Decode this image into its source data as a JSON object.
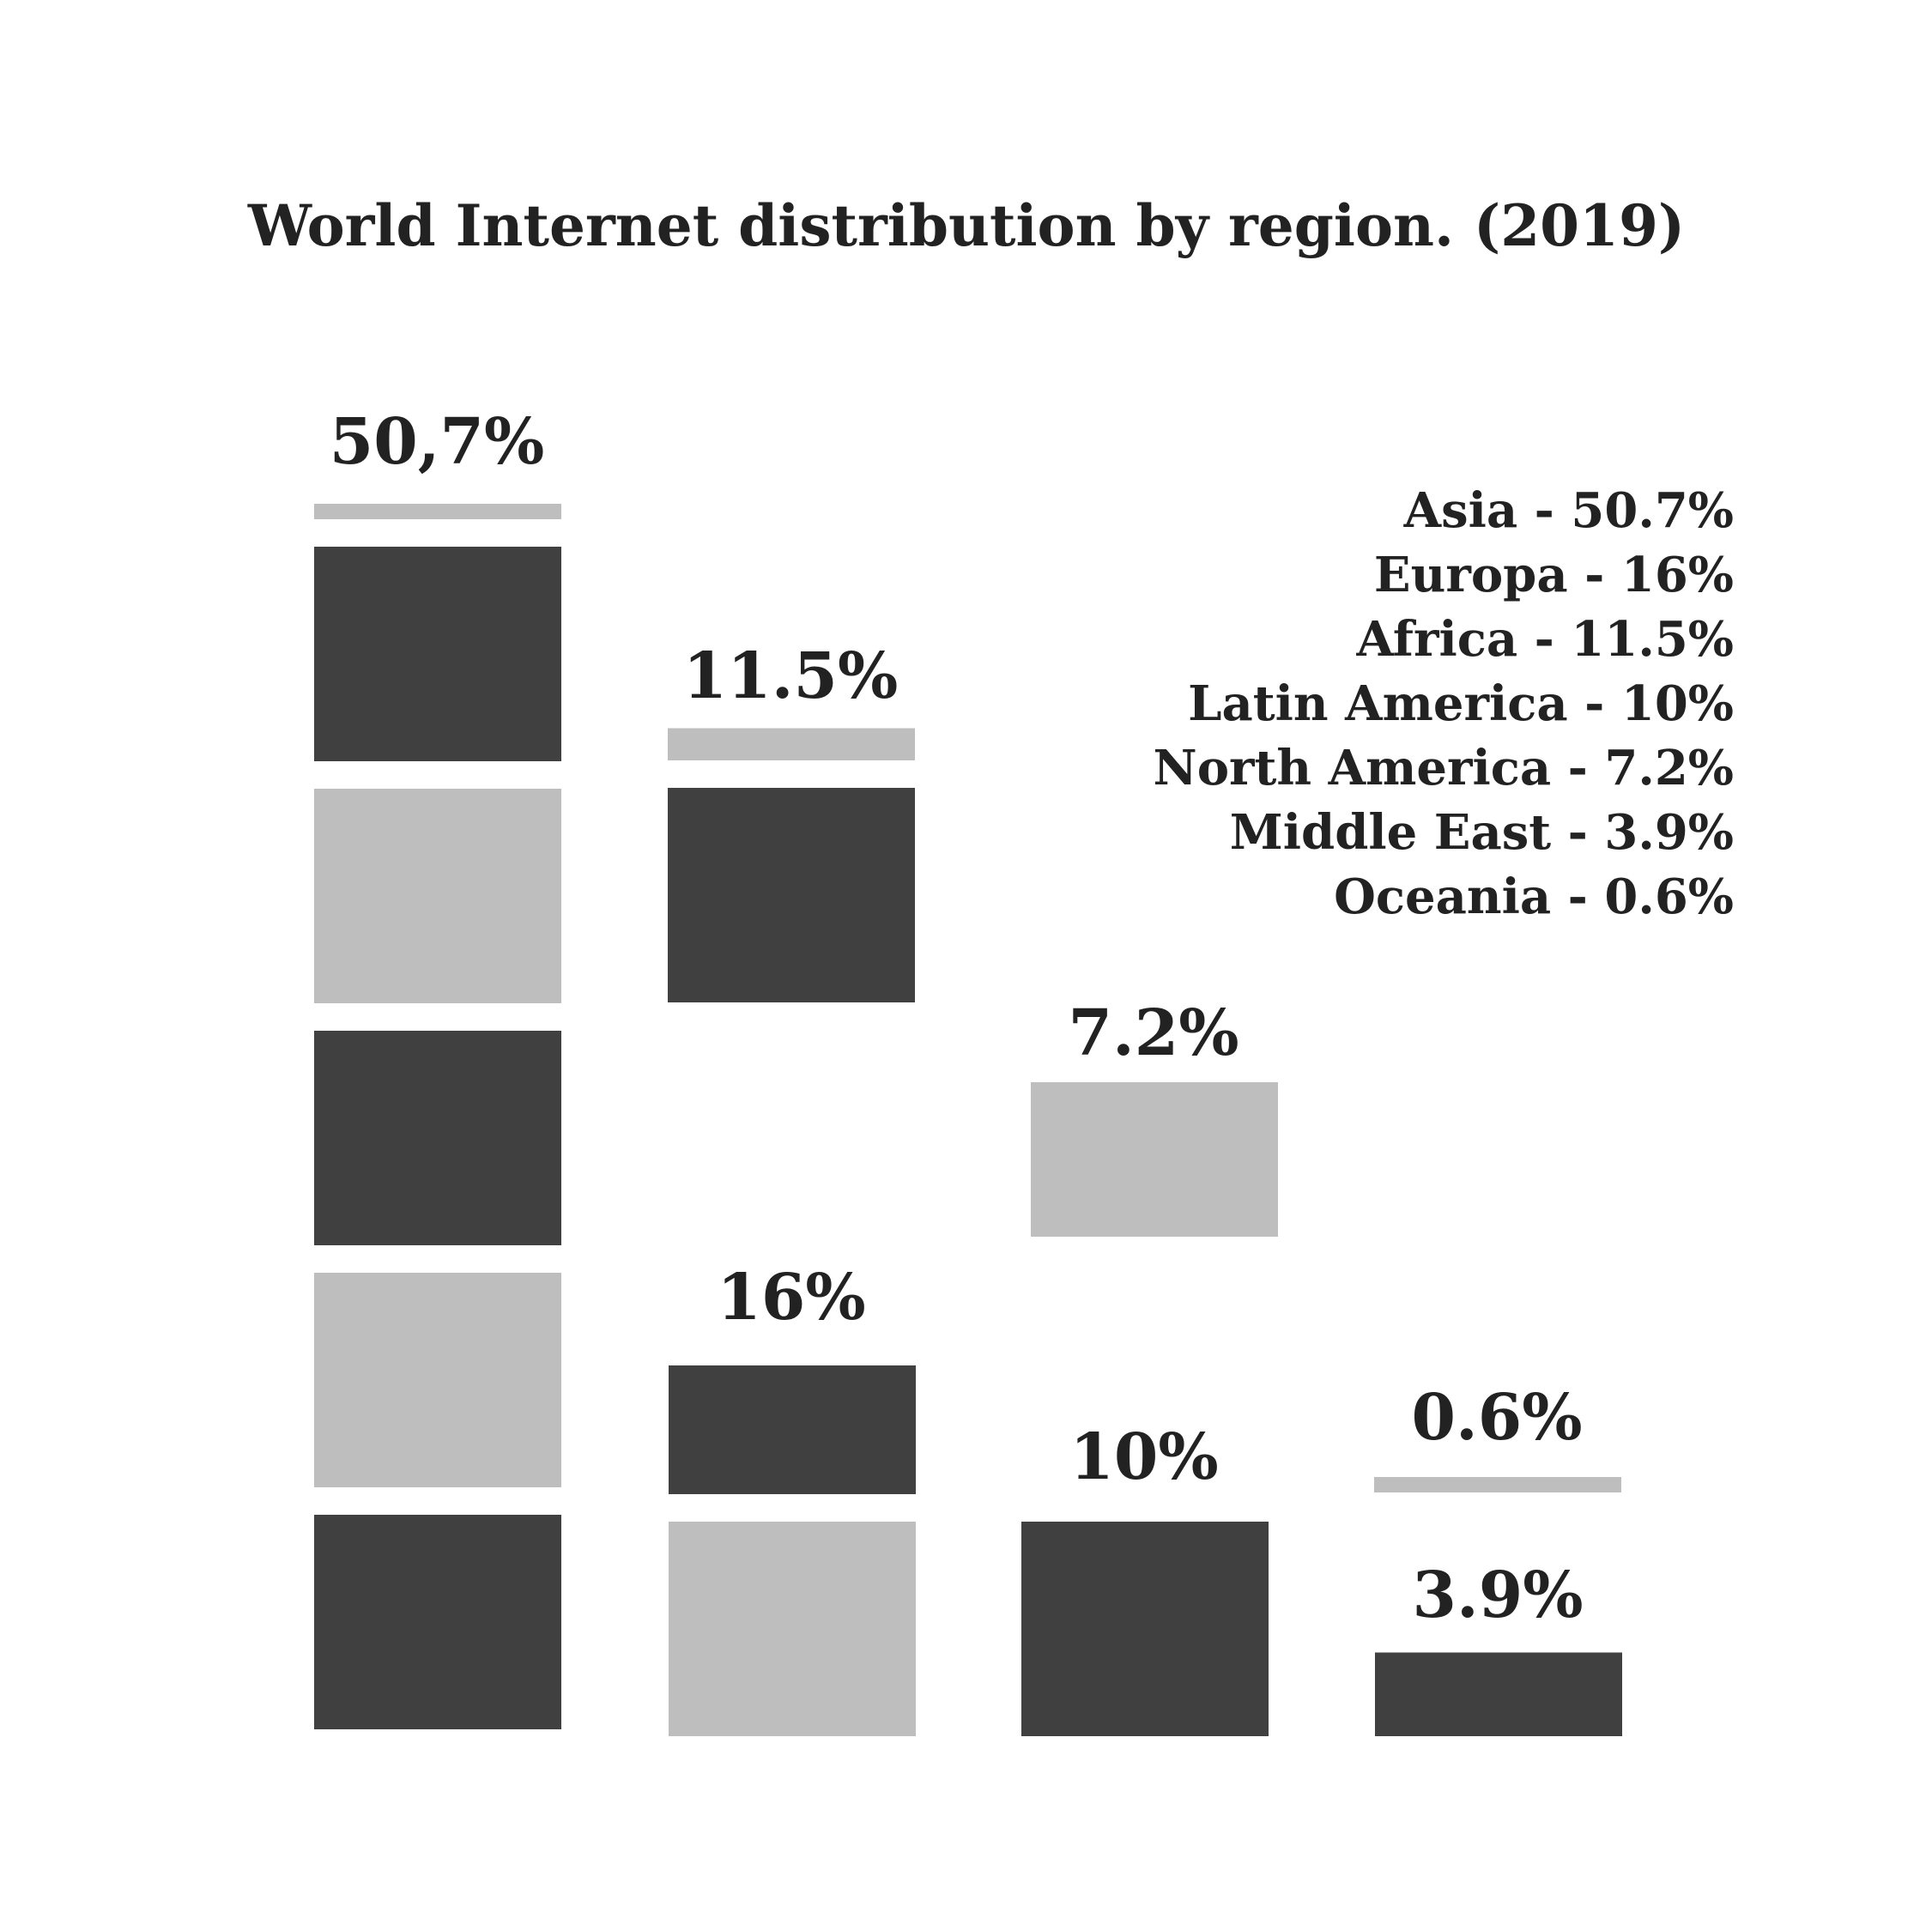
{
  "chart_data": {
    "type": "bar",
    "title": "World Internet distribution by region. (2019)",
    "unit": "%",
    "series": [
      {
        "name": "Asia",
        "value": 50.7,
        "label": "50,7%"
      },
      {
        "name": "Africa",
        "value": 11.5,
        "label": "11.5%"
      },
      {
        "name": "Europa",
        "value": 16,
        "label": "16%"
      },
      {
        "name": "North America",
        "value": 7.2,
        "label": "7.2%"
      },
      {
        "name": "Latin America",
        "value": 10,
        "label": "10%"
      },
      {
        "name": "Oceania",
        "value": 0.6,
        "label": "0.6%"
      },
      {
        "name": "Middle East",
        "value": 3.9,
        "label": "3.9%"
      }
    ],
    "legend": [
      "Asia - 50.7%",
      "Europa - 16%",
      "Africa - 11.5%",
      "Latin America - 10%",
      "North America - 7.2%",
      "Middle East - 3.9%",
      "Oceania - 0.6%"
    ],
    "colors": {
      "dark": "#404040",
      "light": "#bebebe",
      "text": "#222222",
      "background": "#ffffff"
    },
    "xlabel": "",
    "ylabel": ""
  }
}
